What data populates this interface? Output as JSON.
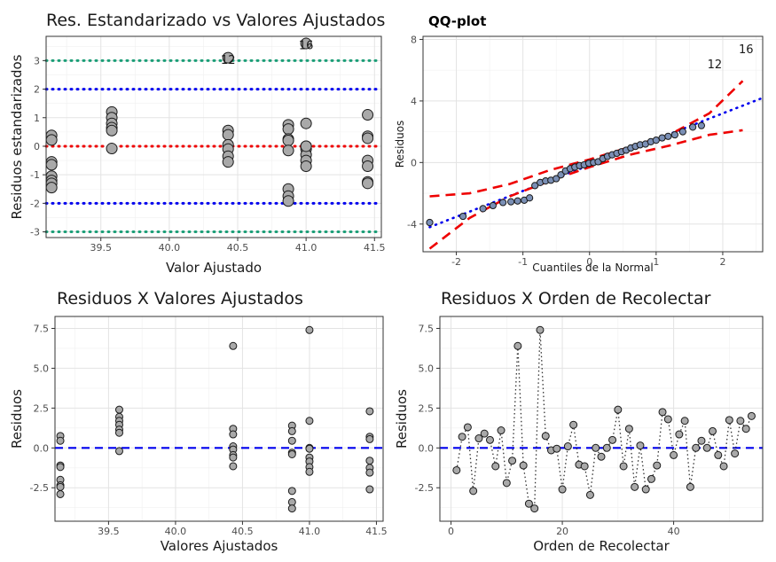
{
  "chart_data": [
    {
      "type": "scatter",
      "title": "Res. Estandarizado vs Valores Ajustados",
      "xlabel": "Valor Ajustado",
      "ylabel": "Residuos estandarizados",
      "xlim": [
        39.1,
        41.55
      ],
      "ylim": [
        -3.2,
        3.85
      ],
      "xticks": [
        39.5,
        40.0,
        40.5,
        41.0,
        41.5
      ],
      "xtick_labels": [
        "39.5",
        "40.0",
        "40.5",
        "41.0",
        "41.5"
      ],
      "yticks": [
        -3,
        -2,
        -1,
        0,
        1,
        2,
        3
      ],
      "ytick_labels": [
        "-3",
        "-2",
        "-1",
        "0",
        "1",
        "2",
        "3"
      ],
      "hlines": [
        {
          "y": 3,
          "color": "#1b9e77",
          "style": "dotted"
        },
        {
          "y": 2,
          "color": "#0000ee",
          "style": "dotted"
        },
        {
          "y": 0,
          "color": "#ee0000",
          "style": "dotted"
        },
        {
          "y": -2,
          "color": "#0000ee",
          "style": "dotted"
        },
        {
          "y": -3,
          "color": "#1b9e77",
          "style": "dotted"
        }
      ],
      "annotations": [
        {
          "x": 40.43,
          "y": 3.05,
          "text": "12"
        },
        {
          "x": 41.0,
          "y": 3.55,
          "text": "16"
        }
      ],
      "x": [
        39.14,
        39.14,
        39.14,
        39.14,
        39.14,
        39.14,
        39.14,
        39.14,
        39.58,
        39.58,
        39.58,
        39.58,
        39.58,
        39.58,
        40.43,
        40.43,
        40.43,
        40.43,
        40.43,
        40.43,
        40.43,
        40.87,
        40.87,
        40.87,
        40.87,
        40.87,
        40.87,
        40.87,
        40.87,
        41.0,
        41.0,
        41.0,
        41.0,
        41.0,
        41.0,
        41.0,
        41.0,
        41.45,
        41.45,
        41.45,
        41.45,
        41.45,
        41.45,
        41.45
      ],
      "y": [
        0.38,
        0.22,
        -0.55,
        -0.65,
        -1.05,
        -1.2,
        -1.3,
        -1.45,
        1.2,
        1.0,
        0.8,
        0.65,
        0.55,
        -0.08,
        3.1,
        0.55,
        0.4,
        0.05,
        -0.1,
        -0.35,
        -0.55,
        0.75,
        0.6,
        0.25,
        0.2,
        -0.15,
        -1.5,
        -1.75,
        -1.92,
        3.6,
        0.8,
        0.0,
        -0.1,
        -0.3,
        -0.5,
        -0.7,
        0.0,
        1.1,
        0.35,
        0.28,
        -0.5,
        -0.7,
        -1.25,
        -1.3
      ],
      "point_color": "#a9a9a9"
    },
    {
      "type": "scatter",
      "title": "QQ-plot",
      "xlabel": "Cuantiles de la Normal",
      "ylabel": "Residuos",
      "xlim": [
        -2.5,
        2.6
      ],
      "ylim": [
        -5.8,
        8.2
      ],
      "xticks": [
        -2,
        -1,
        0,
        1,
        2
      ],
      "xtick_labels": [
        "-2",
        "-1",
        "0",
        "1",
        "2"
      ],
      "yticks": [
        -4,
        0,
        4,
        8
      ],
      "ytick_labels": [
        "-4",
        "0",
        "4",
        "8"
      ],
      "qq_line": {
        "x": [
          -2.4,
          2.6
        ],
        "y": [
          -4.2,
          4.2
        ],
        "color": "#0000ee"
      },
      "band_upper": {
        "x": [
          -2.4,
          -1.8,
          -1.2,
          -0.6,
          0,
          0.6,
          1.2,
          1.8,
          2.3
        ],
        "y": [
          -2.2,
          -2.0,
          -1.4,
          -0.5,
          0.2,
          1.0,
          1.8,
          3.2,
          5.3
        ],
        "color": "#ee0000"
      },
      "band_lower": {
        "x": [
          -2.4,
          -1.8,
          -1.2,
          -0.6,
          0,
          0.6,
          1.2,
          1.8,
          2.3
        ],
        "y": [
          -5.6,
          -3.6,
          -2.2,
          -1.2,
          -0.3,
          0.5,
          1.1,
          1.8,
          2.1
        ],
        "color": "#ee0000"
      },
      "annotations": [
        {
          "x": 1.88,
          "y": 6.4,
          "text": "12"
        },
        {
          "x": 2.35,
          "y": 7.4,
          "text": "16"
        }
      ],
      "x": [
        -2.4,
        -1.9,
        -1.6,
        -1.45,
        -1.3,
        -1.18,
        -1.08,
        -0.98,
        -0.9,
        -0.82,
        -0.74,
        -0.66,
        -0.58,
        -0.5,
        -0.43,
        -0.36,
        -0.29,
        -0.22,
        -0.15,
        -0.08,
        -0.01,
        0.06,
        0.13,
        0.2,
        0.27,
        0.34,
        0.41,
        0.48,
        0.55,
        0.62,
        0.69,
        0.76,
        0.84,
        0.92,
        1.0,
        1.09,
        1.18,
        1.28,
        1.4,
        1.55,
        1.68
      ],
      "y": [
        -3.9,
        -3.5,
        -3.0,
        -2.8,
        -2.6,
        -2.55,
        -2.5,
        -2.45,
        -2.3,
        -1.5,
        -1.3,
        -1.2,
        -1.15,
        -1.05,
        -0.8,
        -0.55,
        -0.4,
        -0.3,
        -0.2,
        -0.15,
        -0.05,
        0.0,
        0.05,
        0.25,
        0.4,
        0.5,
        0.6,
        0.7,
        0.8,
        0.95,
        1.05,
        1.15,
        1.2,
        1.35,
        1.45,
        1.6,
        1.7,
        1.8,
        2.0,
        2.3,
        2.4
      ],
      "point_color": "#7a8fb5"
    },
    {
      "type": "scatter",
      "title": "Residuos X Valores Ajustados",
      "xlabel": "Valores Ajustados",
      "ylabel": "Residuos",
      "xlim": [
        39.1,
        41.55
      ],
      "ylim": [
        -4.6,
        8.25
      ],
      "xticks": [
        39.5,
        40.0,
        40.5,
        41.0,
        41.5
      ],
      "xtick_labels": [
        "39.5",
        "40.0",
        "40.5",
        "41.0",
        "41.5"
      ],
      "yticks": [
        -2.5,
        0.0,
        2.5,
        5.0,
        7.5
      ],
      "ytick_labels": [
        "-2.5",
        "0.0",
        "2.5",
        "5.0",
        "7.5"
      ],
      "hline": {
        "y": 0,
        "color": "#0000ee",
        "style": "dashed"
      },
      "x": [
        39.14,
        39.14,
        39.14,
        39.14,
        39.14,
        39.14,
        39.14,
        39.14,
        39.58,
        39.58,
        39.58,
        39.58,
        39.58,
        39.58,
        39.58,
        40.43,
        40.43,
        40.43,
        40.43,
        40.43,
        40.43,
        40.43,
        40.43,
        40.87,
        40.87,
        40.87,
        40.87,
        40.87,
        40.87,
        40.87,
        40.87,
        41.0,
        41.0,
        41.0,
        41.0,
        41.0,
        41.0,
        41.0,
        41.0,
        41.45,
        41.45,
        41.45,
        41.45,
        41.45,
        41.45,
        41.45
      ],
      "y": [
        0.75,
        0.45,
        -1.1,
        -1.2,
        -2.0,
        -2.35,
        -2.45,
        -2.9,
        2.4,
        1.95,
        1.7,
        1.45,
        1.15,
        0.95,
        -0.2,
        6.4,
        1.2,
        0.85,
        0.1,
        -0.1,
        -0.45,
        -0.6,
        -1.15,
        1.4,
        1.05,
        0.45,
        -0.3,
        -0.4,
        -2.7,
        -3.4,
        -3.8,
        7.4,
        1.7,
        0.0,
        -0.05,
        -0.6,
        -0.85,
        -1.2,
        -1.5,
        2.3,
        0.7,
        0.55,
        -0.8,
        -1.25,
        -1.55,
        -2.6
      ],
      "point_color": "#a9a9a9"
    },
    {
      "type": "line",
      "title": "Residuos X Orden de Recolectar",
      "xlabel": "Orden de Recolectar",
      "ylabel": "Residuos",
      "xlim": [
        -2,
        56
      ],
      "ylim": [
        -4.6,
        8.25
      ],
      "xticks": [
        0,
        20,
        40
      ],
      "xtick_labels": [
        "0",
        "20",
        "40"
      ],
      "yticks": [
        -2.5,
        0.0,
        2.5,
        5.0,
        7.5
      ],
      "ytick_labels": [
        "-2.5",
        "0.0",
        "2.5",
        "5.0",
        "7.5"
      ],
      "hline": {
        "y": 0,
        "color": "#0000ee",
        "style": "dashed"
      },
      "x": [
        1,
        2,
        3,
        4,
        5,
        6,
        7,
        8,
        9,
        10,
        11,
        12,
        13,
        14,
        15,
        16,
        17,
        18,
        19,
        20,
        21,
        22,
        23,
        24,
        25,
        26,
        27,
        28,
        29,
        30,
        31,
        32,
        33,
        34,
        35,
        36,
        37,
        38,
        39,
        40,
        41,
        42,
        43,
        44,
        45,
        46,
        47,
        48,
        49,
        50,
        51,
        52,
        53,
        54
      ],
      "y": [
        -1.4,
        0.7,
        1.3,
        -2.7,
        0.6,
        0.9,
        0.5,
        -1.15,
        1.1,
        -2.2,
        -0.8,
        6.4,
        -1.1,
        -3.5,
        -3.8,
        7.4,
        0.75,
        -0.15,
        -0.05,
        -2.6,
        0.1,
        1.45,
        -1.05,
        -1.15,
        -2.95,
        0.0,
        -0.55,
        0.0,
        0.5,
        2.4,
        -1.15,
        1.2,
        -2.45,
        0.15,
        -2.6,
        -1.95,
        -1.1,
        2.25,
        1.8,
        -0.45,
        0.85,
        1.7,
        -2.45,
        0.0,
        0.45,
        0.0,
        1.05,
        -0.45,
        -1.15,
        1.75,
        -0.35,
        1.7,
        1.2,
        2.0
      ],
      "point_color": "#a9a9a9",
      "line_style": "dotted"
    }
  ]
}
